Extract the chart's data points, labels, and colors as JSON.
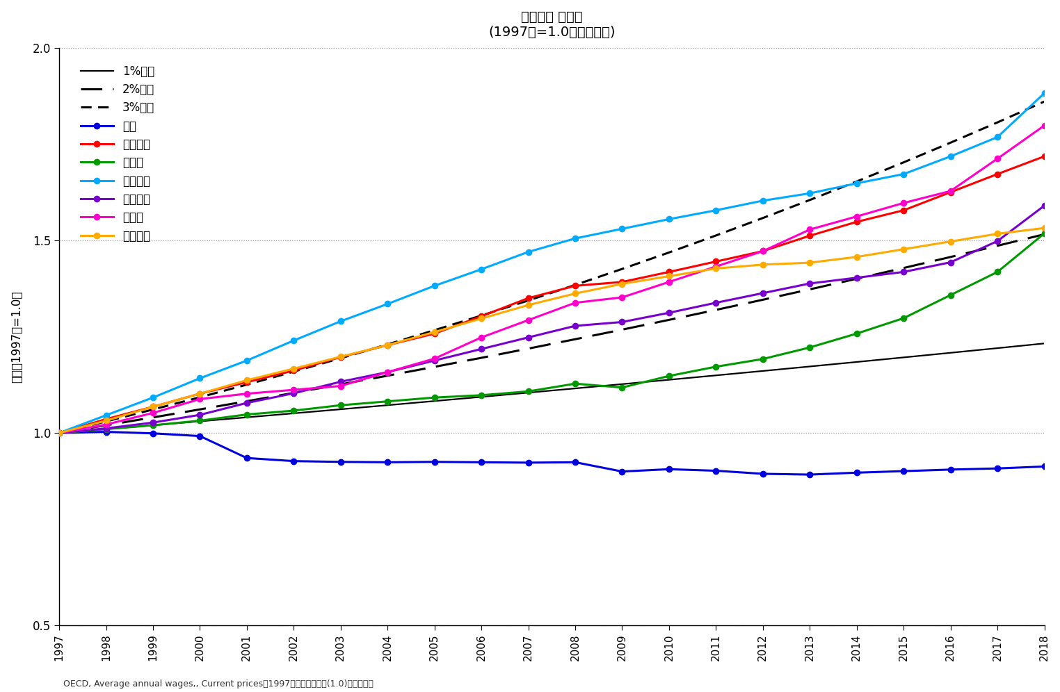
{
  "title_line1": "平均給与 名目値",
  "title_line2": "(1997年=1.0とした倍率)",
  "ylabel": "倍率（1997年=1.0）",
  "footnote": "OECD, Average annual wages,, Current pricesの1997年の数値を基準(1.0)とした倍率",
  "years": [
    1997,
    1998,
    1999,
    2000,
    2001,
    2002,
    2003,
    2004,
    2005,
    2006,
    2007,
    2008,
    2009,
    2010,
    2011,
    2012,
    2013,
    2014,
    2015,
    2016,
    2017,
    2018
  ],
  "growth1": [
    1.0,
    1.01,
    1.0201,
    1.030301,
    1.04060401,
    1.05101005,
    1.06152015,
    1.07213535,
    1.08285671,
    1.09368527,
    1.10462213,
    1.11566835,
    1.12682503,
    1.13809328,
    1.14947421,
    1.16096896,
    1.17257864,
    1.18430443,
    1.19614748,
    1.20810895,
    1.22019004,
    1.23239194
  ],
  "growth2": [
    1.0,
    1.02,
    1.0404,
    1.061208,
    1.08243216,
    1.1040808,
    1.12616242,
    1.14868567,
    1.17165938,
    1.19509257,
    1.21899442,
    1.24337431,
    1.2682418,
    1.29360663,
    1.31947877,
    1.34586834,
    1.37278571,
    1.40024142,
    1.42824625,
    1.45681118,
    1.4859474,
    1.51566635
  ],
  "growth3": [
    1.0,
    1.03,
    1.0609,
    1.092727,
    1.12550881,
    1.15927407,
    1.1940523,
    1.22987387,
    1.26677008,
    1.30477318,
    1.34391638,
    1.38423387,
    1.42576089,
    1.46853371,
    1.51258972,
    1.55796742,
    1.60470644,
    1.65284763,
    1.70243306,
    1.75350605,
    1.80611123,
    1.86029457
  ],
  "japan": [
    1.0,
    1.003,
    0.999,
    0.992,
    0.935,
    0.927,
    0.925,
    0.924,
    0.925,
    0.924,
    0.923,
    0.924,
    0.9,
    0.906,
    0.902,
    0.894,
    0.892,
    0.897,
    0.901,
    0.905,
    0.908,
    0.913
  ],
  "usa": [
    1.0,
    1.036,
    1.068,
    1.102,
    1.132,
    1.162,
    1.197,
    1.228,
    1.258,
    1.303,
    1.35,
    1.382,
    1.392,
    1.418,
    1.445,
    1.472,
    1.512,
    1.548,
    1.578,
    1.625,
    1.672,
    1.718
  ],
  "germany": [
    1.0,
    1.01,
    1.02,
    1.032,
    1.048,
    1.058,
    1.072,
    1.082,
    1.092,
    1.098,
    1.108,
    1.128,
    1.118,
    1.148,
    1.172,
    1.192,
    1.222,
    1.258,
    1.298,
    1.358,
    1.418,
    1.518
  ],
  "uk": [
    1.0,
    1.046,
    1.092,
    1.142,
    1.188,
    1.24,
    1.29,
    1.335,
    1.382,
    1.425,
    1.47,
    1.505,
    1.53,
    1.555,
    1.578,
    1.603,
    1.622,
    1.648,
    1.672,
    1.718,
    1.768,
    1.882
  ],
  "france": [
    1.0,
    1.012,
    1.027,
    1.047,
    1.078,
    1.103,
    1.133,
    1.158,
    1.188,
    1.218,
    1.248,
    1.278,
    1.288,
    1.312,
    1.338,
    1.363,
    1.388,
    1.403,
    1.418,
    1.443,
    1.498,
    1.59
  ],
  "canada": [
    1.0,
    1.022,
    1.052,
    1.088,
    1.102,
    1.112,
    1.122,
    1.158,
    1.193,
    1.248,
    1.293,
    1.338,
    1.352,
    1.392,
    1.432,
    1.472,
    1.528,
    1.562,
    1.597,
    1.628,
    1.712,
    1.798
  ],
  "italy": [
    1.0,
    1.032,
    1.068,
    1.102,
    1.137,
    1.167,
    1.198,
    1.228,
    1.262,
    1.297,
    1.332,
    1.362,
    1.387,
    1.407,
    1.427,
    1.437,
    1.442,
    1.457,
    1.477,
    1.497,
    1.517,
    1.532
  ],
  "colors": {
    "japan": "#0000dd",
    "usa": "#ff0000",
    "germany": "#009900",
    "uk": "#00aaff",
    "france": "#7700cc",
    "canada": "#ff00cc",
    "italy": "#ffaa00"
  },
  "ylim": [
    0.5,
    2.0
  ],
  "yticks": [
    0.5,
    1.0,
    1.5,
    2.0
  ],
  "background_color": "#ffffff"
}
